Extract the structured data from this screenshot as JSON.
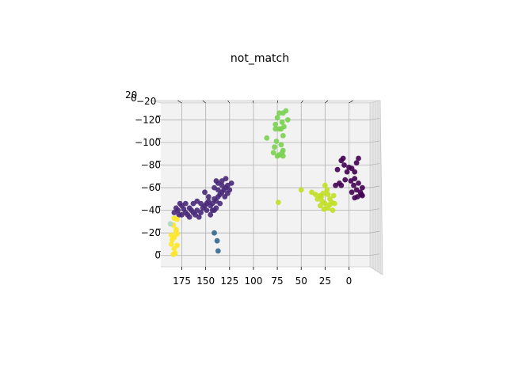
{
  "chart_data": {
    "type": "scatter",
    "projection": "3d",
    "title": "not_match",
    "xlabel": "",
    "ylabel": "",
    "zlabel": "",
    "x_ticks": [
      "175",
      "150",
      "125",
      "100",
      "75",
      "50",
      "25",
      "0"
    ],
    "y_ticks": [
      "−120",
      "−100",
      "−80",
      "−60",
      "−40",
      "−20",
      "0"
    ],
    "z_ticks": [
      "20",
      "0",
      "−20"
    ],
    "xlim": [
      -22,
      197
    ],
    "ylim": [
      -135,
      10
    ],
    "grid": true,
    "colormap": "viridis",
    "series": [
      {
        "color": "#440154",
        "points": [
          [
            0,
            -78
          ],
          [
            5,
            -80
          ],
          [
            8,
            -84
          ],
          [
            12,
            -76
          ],
          [
            -3,
            -77
          ],
          [
            -8,
            -82
          ],
          [
            -10,
            -86
          ],
          [
            2,
            -74
          ],
          [
            6,
            -86
          ],
          [
            -6,
            -74
          ],
          [
            10,
            -64
          ],
          [
            14,
            -62
          ],
          [
            -2,
            -66
          ],
          [
            -5,
            -62
          ],
          [
            -8,
            -58
          ],
          [
            -12,
            -56
          ],
          [
            -14,
            -60
          ],
          [
            -10,
            -64
          ],
          [
            -6,
            -68
          ],
          [
            -3,
            -56
          ],
          [
            -9,
            -52
          ],
          [
            -13,
            -54
          ],
          [
            -6,
            -51
          ],
          [
            4,
            -67
          ],
          [
            8,
            -62
          ],
          [
            -14,
            -53
          ]
        ]
      },
      {
        "color": "#482878",
        "points": [
          [
            181,
            -42
          ],
          [
            179,
            -40
          ],
          [
            183,
            -38
          ],
          [
            178,
            -36
          ],
          [
            175,
            -44
          ],
          [
            173,
            -41
          ],
          [
            171,
            -38
          ],
          [
            169,
            -36
          ],
          [
            167,
            -42
          ],
          [
            165,
            -40
          ],
          [
            163,
            -38
          ],
          [
            161,
            -36
          ],
          [
            159,
            -40
          ],
          [
            157,
            -34
          ],
          [
            155,
            -38
          ],
          [
            153,
            -42
          ],
          [
            151,
            -44
          ],
          [
            149,
            -46
          ],
          [
            147,
            -48
          ],
          [
            145,
            -44
          ],
          [
            143,
            -46
          ],
          [
            141,
            -50
          ],
          [
            139,
            -48
          ],
          [
            137,
            -52
          ],
          [
            135,
            -54
          ],
          [
            133,
            -56
          ],
          [
            131,
            -58
          ],
          [
            129,
            -60
          ],
          [
            127,
            -62
          ],
          [
            125,
            -58
          ],
          [
            123,
            -64
          ],
          [
            145,
            -36
          ],
          [
            143,
            -40
          ],
          [
            147,
            -52
          ],
          [
            149,
            -40
          ],
          [
            151,
            -56
          ],
          [
            155,
            -46
          ],
          [
            159,
            -48
          ],
          [
            163,
            -46
          ],
          [
            167,
            -34
          ],
          [
            171,
            -46
          ],
          [
            175,
            -36
          ],
          [
            177,
            -46
          ],
          [
            133,
            -62
          ],
          [
            137,
            -64
          ],
          [
            139,
            -66
          ],
          [
            141,
            -60
          ],
          [
            135,
            -46
          ],
          [
            139,
            -42
          ],
          [
            141,
            -40
          ],
          [
            130,
            -52
          ],
          [
            127,
            -55
          ],
          [
            133,
            -66
          ],
          [
            129,
            -68
          ],
          [
            137,
            -58
          ]
        ]
      },
      {
        "color": "#31688e",
        "points": [
          [
            141,
            -20
          ],
          [
            138,
            -13
          ],
          [
            137,
            -4
          ]
        ]
      },
      {
        "color": "#7ad151",
        "points": [
          [
            73,
            -112
          ],
          [
            77,
            -116
          ],
          [
            70,
            -118
          ],
          [
            69,
            -126
          ],
          [
            75,
            -122
          ],
          [
            73,
            -126
          ],
          [
            66,
            -128
          ],
          [
            71,
            -112
          ],
          [
            69,
            -106
          ],
          [
            76,
            -101
          ],
          [
            71,
            -98
          ],
          [
            78,
            -96
          ],
          [
            69,
            -93
          ],
          [
            73,
            -89
          ],
          [
            69,
            -88
          ],
          [
            75,
            -88
          ],
          [
            70,
            -91
          ],
          [
            79,
            -91
          ],
          [
            86,
            -104
          ],
          [
            64,
            -120
          ],
          [
            68,
            -114
          ],
          [
            77,
            -112
          ]
        ]
      },
      {
        "color": "#c2df23",
        "points": [
          [
            27,
            -55
          ],
          [
            22,
            -54
          ],
          [
            30,
            -53
          ],
          [
            33,
            -50
          ],
          [
            28,
            -48
          ],
          [
            25,
            -46
          ],
          [
            20,
            -45
          ],
          [
            15,
            -46
          ],
          [
            22,
            -42
          ],
          [
            26,
            -41
          ],
          [
            30,
            -44
          ],
          [
            20,
            -50
          ],
          [
            16,
            -53
          ],
          [
            23,
            -58
          ],
          [
            35,
            -54
          ],
          [
            18,
            -47
          ],
          [
            25,
            -62
          ],
          [
            29,
            -52
          ],
          [
            17,
            -40
          ],
          [
            50,
            -58
          ],
          [
            39,
            -56
          ],
          [
            74,
            -47
          ]
        ]
      },
      {
        "color": "#fde725",
        "points": [
          [
            183,
            -16
          ],
          [
            181,
            -21
          ],
          [
            185,
            -14
          ],
          [
            180,
            -9
          ],
          [
            183,
            -6
          ],
          [
            186,
            -10
          ],
          [
            182,
            -2
          ],
          [
            184,
            -1
          ],
          [
            181,
            -23
          ],
          [
            184,
            -27
          ],
          [
            180,
            -32
          ],
          [
            183,
            -33
          ],
          [
            180,
            -19
          ],
          [
            186,
            -18
          ]
        ]
      },
      {
        "color": "#a8d8c4",
        "points": [
          [
            187,
            -28
          ]
        ]
      }
    ]
  }
}
